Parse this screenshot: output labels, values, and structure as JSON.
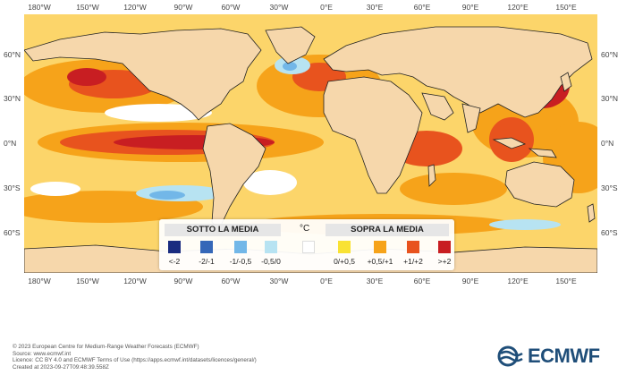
{
  "map": {
    "longitude_labels": [
      "180°W",
      "150°W",
      "120°W",
      "90°W",
      "60°W",
      "30°W",
      "0°E",
      "30°E",
      "60°E",
      "90°E",
      "120°E",
      "150°E"
    ],
    "latitude_labels": [
      "60°N",
      "30°N",
      "0°N",
      "30°S",
      "60°S"
    ]
  },
  "legend": {
    "below_title": "SOTTO LA MEDIA",
    "above_title": "SOPRA LA MEDIA",
    "unit": "°C",
    "bins": [
      {
        "label": "<-2",
        "color": "#1a2c80"
      },
      {
        "label": "-2/-1",
        "color": "#3567b8"
      },
      {
        "label": "-1/-0,5",
        "color": "#72b7e8"
      },
      {
        "label": "-0,5/0",
        "color": "#b7e3f2"
      },
      {
        "label": "",
        "color": "#ffffff"
      },
      {
        "label": "0/+0,5",
        "color": "#f9e233"
      },
      {
        "label": "+0,5/+1",
        "color": "#f6a31a"
      },
      {
        "label": "+1/+2",
        "color": "#e8531e"
      },
      {
        "label": ">+2",
        "color": "#c81e22"
      }
    ]
  },
  "colors": {
    "land": "#f6d7ab",
    "ocean_base": "#fcd56a",
    "warm": "#f6a31a",
    "hot": "#e8531e",
    "very_hot": "#c81e22",
    "cool": "#b7e3f2",
    "cold": "#72b7e8"
  },
  "footer": {
    "line1": "© 2023 European Centre for Medium-Range Weather Forecasts (ECMWF)",
    "line2": "Source: www.ecmwf.int",
    "line3": "Licence: CC BY 4.0 and ECMWF Terms of Use (https://apps.ecmwf.int/datasets/licences/general/)",
    "line4": "Created at 2023-09-27T09:48:39.558Z"
  },
  "logo": {
    "text": "ECMWF",
    "icon": "ecmwf-logo-icon"
  }
}
